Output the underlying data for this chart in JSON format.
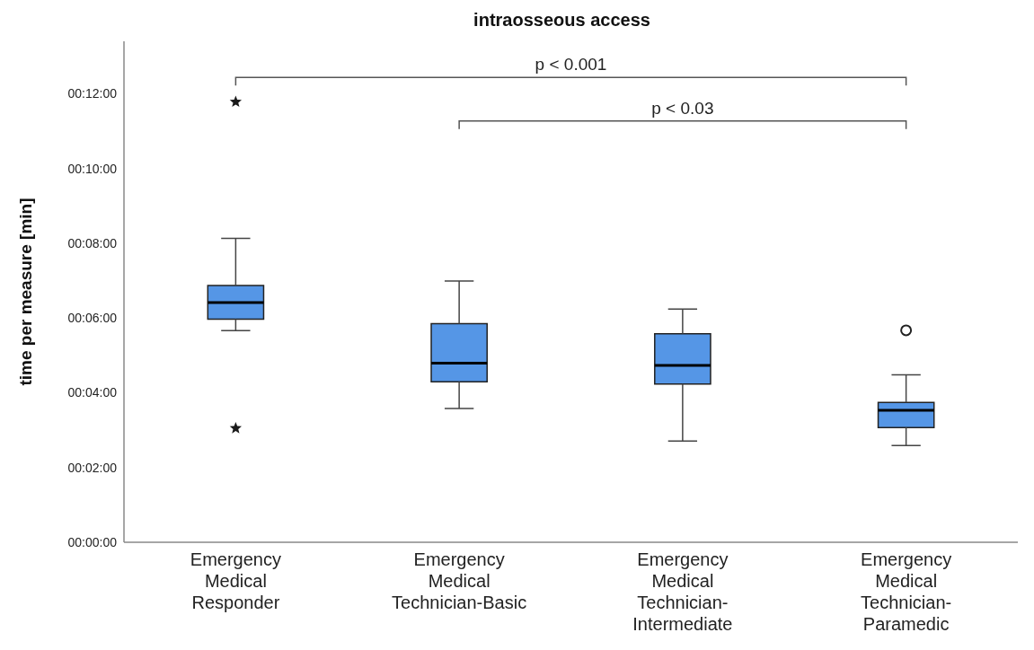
{
  "chart_data": {
    "type": "box",
    "title": "intraosseous access",
    "ylabel": "time per measure [min]",
    "categories": [
      "Emergency Medical Responder",
      "Emergency Medical Technician-Basic",
      "Emergency Medical Technician-Intermediate",
      "Emergency Medical Technician-Paramedic"
    ],
    "ylim": [
      0,
      13.4
    ],
    "yticks": [
      {
        "value": 0,
        "label": "00:00:00"
      },
      {
        "value": 2,
        "label": "00:02:00"
      },
      {
        "value": 4,
        "label": "00:04:00"
      },
      {
        "value": 6,
        "label": "00:06:00"
      },
      {
        "value": 8,
        "label": "00:08:00"
      },
      {
        "value": 10,
        "label": "00:10:00"
      },
      {
        "value": 12,
        "label": "00:12:00"
      }
    ],
    "series": [
      {
        "type": "box",
        "color": "#5596e6",
        "boxes": [
          {
            "low": 5.66,
            "q1": 5.97,
            "median": 6.41,
            "q3": 6.87,
            "high": 8.13
          },
          {
            "low": 3.58,
            "q1": 4.29,
            "median": 4.79,
            "q3": 5.85,
            "high": 6.99
          },
          {
            "low": 2.71,
            "q1": 4.23,
            "median": 4.73,
            "q3": 5.58,
            "high": 6.24
          },
          {
            "low": 2.59,
            "q1": 3.07,
            "median": 3.53,
            "q3": 3.74,
            "high": 4.48,
            "outliers": [
              5.67
            ]
          }
        ]
      },
      {
        "type": "scatter",
        "marker": "star",
        "color": "#1a1a1a",
        "x": [
          "Emergency Medical Responder",
          "Emergency Medical Responder"
        ],
        "values": [
          11.78,
          3.05
        ]
      }
    ],
    "annotations": [
      "p < 0.001",
      "p < 0.03"
    ]
  }
}
